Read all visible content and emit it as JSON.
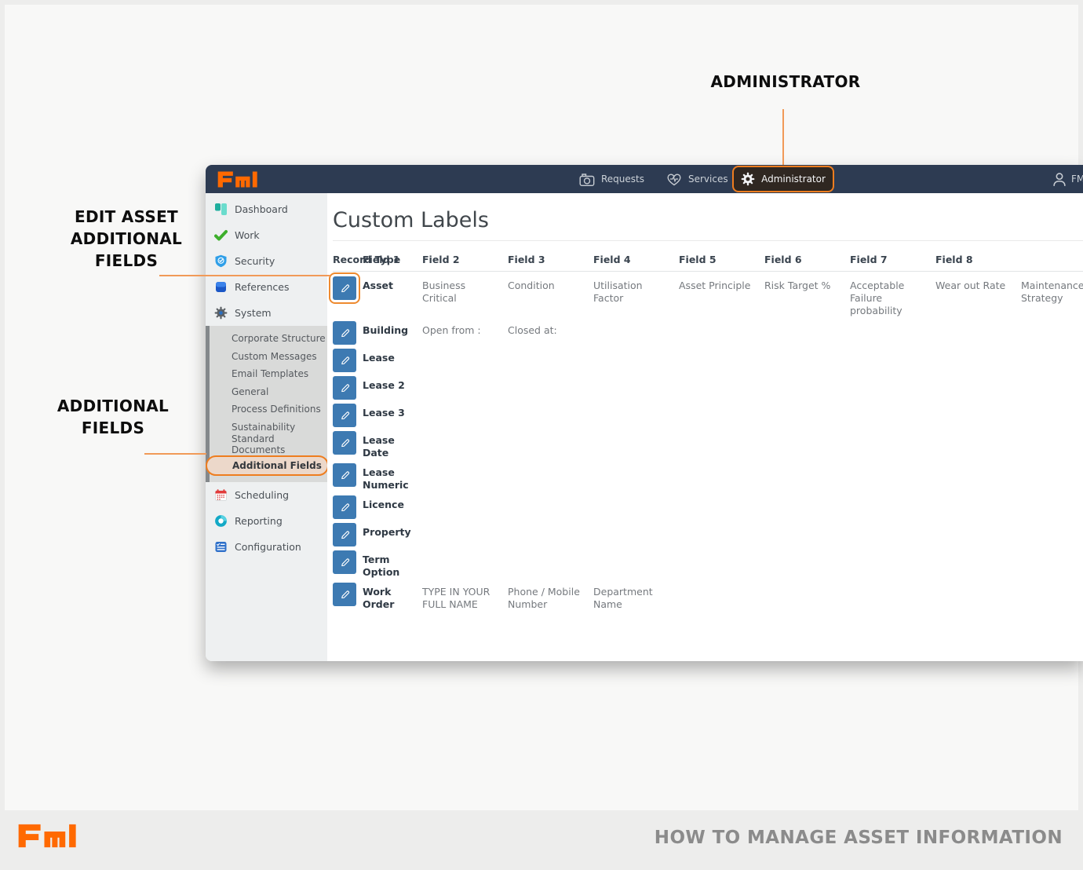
{
  "annotations": {
    "administrator": {
      "label": "ADMINISTRATOR"
    },
    "edit_asset": {
      "lines": [
        "EDIT ASSET",
        "ADDITIONAL",
        "FIELDS"
      ]
    },
    "additional_fields": {
      "lines": [
        "ADDITIONAL",
        "FIELDS"
      ]
    }
  },
  "navbar": {
    "logo_text": "FMI",
    "requests_label": "Requests",
    "services_label": "Services",
    "administrator_label": "Administrator",
    "user_label": "FM"
  },
  "sidebar": {
    "dashboard_label": "Dashboard",
    "work_label": "Work",
    "security_label": "Security",
    "references_label": "References",
    "system_label": "System",
    "system_subitems": [
      "Corporate Structure",
      "Custom Messages",
      "Email Templates",
      "General",
      "Process Definitions",
      "Sustainability",
      "Standard Documents",
      "Additional Fields"
    ],
    "active_subitem": "Additional Fields",
    "scheduling_label": "Scheduling",
    "reporting_label": "Reporting",
    "configuration_label": "Configuration"
  },
  "main": {
    "title": "Custom Labels",
    "table": {
      "columns": [
        "Record Type",
        "Field 1",
        "Field 2",
        "Field 3",
        "Field 4",
        "Field 5",
        "Field 6",
        "Field 7",
        "Field 8"
      ],
      "rows": [
        {
          "record_type": "Asset",
          "highlighted": true,
          "fields": [
            "Business Critical",
            "Condition",
            "Utilisation Factor",
            "Asset Principle",
            "Risk Target %",
            "Acceptable Failure probability",
            "Wear out Rate",
            "Maintenance Strategy"
          ]
        },
        {
          "record_type": "Building",
          "fields": [
            "Open from :",
            "Closed at:",
            "",
            "",
            "",
            "",
            "",
            ""
          ]
        },
        {
          "record_type": "Lease",
          "fields": [
            "",
            "",
            "",
            "",
            "",
            "",
            "",
            ""
          ]
        },
        {
          "record_type": "Lease 2",
          "fields": [
            "",
            "",
            "",
            "",
            "",
            "",
            "",
            ""
          ]
        },
        {
          "record_type": "Lease 3",
          "fields": [
            "",
            "",
            "",
            "",
            "",
            "",
            "",
            ""
          ]
        },
        {
          "record_type": "Lease Date",
          "fields": [
            "",
            "",
            "",
            "",
            "",
            "",
            "",
            ""
          ]
        },
        {
          "record_type": "Lease Numeric",
          "fields": [
            "",
            "",
            "",
            "",
            "",
            "",
            "",
            ""
          ]
        },
        {
          "record_type": "Licence",
          "fields": [
            "",
            "",
            "",
            "",
            "",
            "",
            "",
            ""
          ]
        },
        {
          "record_type": "Property",
          "fields": [
            "",
            "",
            "",
            "",
            "",
            "",
            "",
            ""
          ]
        },
        {
          "record_type": "Term Option",
          "fields": [
            "",
            "",
            "",
            "",
            "",
            "",
            "",
            ""
          ]
        },
        {
          "record_type": "Work Order",
          "fields": [
            "TYPE IN YOUR FULL NAME",
            "Phone / Mobile Number",
            "Department Name",
            "",
            "",
            "",
            "",
            ""
          ]
        }
      ]
    }
  },
  "footer": {
    "logo_text": "FMI",
    "title": "HOW TO MANAGE ASSET INFORMATION"
  },
  "colors": {
    "accent_orange": "#ee7d1f",
    "annotation_line_orange": "#f19a58",
    "logo_orange": "#ff6900",
    "navbar_navy": "#2d3b52",
    "edit_button_blue": "#3d7ab2",
    "active_item_bg": "#ecd8ca"
  }
}
